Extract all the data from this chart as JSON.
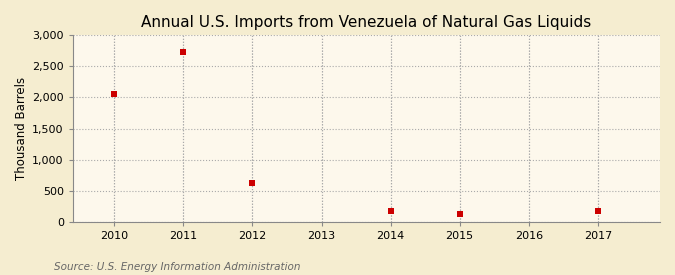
{
  "title": "Annual U.S. Imports from Venezuela of Natural Gas Liquids",
  "ylabel": "Thousand Barrels",
  "source": "Source: U.S. Energy Information Administration",
  "background_color": "#F5EDD0",
  "plot_background_color": "#FDF8EC",
  "grid_color": "#AAAAAA",
  "marker_color": "#CC0000",
  "x": [
    2010,
    2011,
    2012,
    2014,
    2015,
    2017
  ],
  "y": [
    2050,
    2730,
    630,
    165,
    125,
    165
  ],
  "xlim": [
    2009.4,
    2017.9
  ],
  "ylim": [
    0,
    3000
  ],
  "yticks": [
    0,
    500,
    1000,
    1500,
    2000,
    2500,
    3000
  ],
  "xticks": [
    2010,
    2011,
    2012,
    2013,
    2014,
    2015,
    2016,
    2017
  ],
  "title_fontsize": 11,
  "label_fontsize": 8.5,
  "tick_fontsize": 8,
  "source_fontsize": 7.5
}
